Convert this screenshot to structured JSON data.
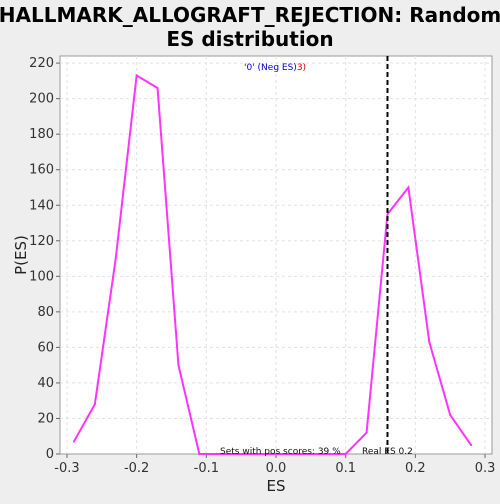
{
  "chart_data": {
    "type": "line",
    "title_lines": [
      "HALLMARK_ALLOGRAFT_REJECTION: Random",
      "ES distribution"
    ],
    "xlabel": "ES",
    "ylabel": "P(ES)",
    "xlim": [
      -0.31,
      0.31
    ],
    "ylim": [
      0,
      224
    ],
    "xticks": [
      -0.3,
      -0.2,
      -0.1,
      0.0,
      0.1,
      0.2,
      0.3
    ],
    "xtick_labels": [
      "-0.3",
      "-0.2",
      "-0.1",
      "0.0",
      "0.1",
      "0.2",
      "0.3"
    ],
    "yticks": [
      0,
      20,
      40,
      60,
      80,
      100,
      120,
      140,
      160,
      180,
      200,
      220
    ],
    "ytick_labels": [
      "0",
      "20",
      "40",
      "60",
      "80",
      "100",
      "120",
      "140",
      "160",
      "180",
      "200",
      "220"
    ],
    "grid": true,
    "series": [
      {
        "name": "random ES distribution",
        "color": "#ff33ff",
        "x": [
          -0.29,
          -0.26,
          -0.23,
          -0.2,
          -0.17,
          -0.14,
          -0.11,
          -0.08,
          0.1,
          0.13,
          0.16,
          0.19,
          0.22,
          0.25,
          0.28
        ],
        "y": [
          7,
          28,
          110,
          213,
          206,
          50,
          0,
          0,
          0,
          12,
          135,
          150,
          63,
          22,
          5
        ]
      }
    ],
    "real_es": 0.16,
    "real_es_color": "#000000",
    "legend": {
      "part1": "'0' (Neg ES)",
      "part1_color": "#0000cc",
      "part2": "3)",
      "part2_color": "#cc0000"
    },
    "annotations": {
      "pos_scores": "Sets with pos scores: 39 %",
      "real_es_label": "Real ES 0.2"
    }
  }
}
